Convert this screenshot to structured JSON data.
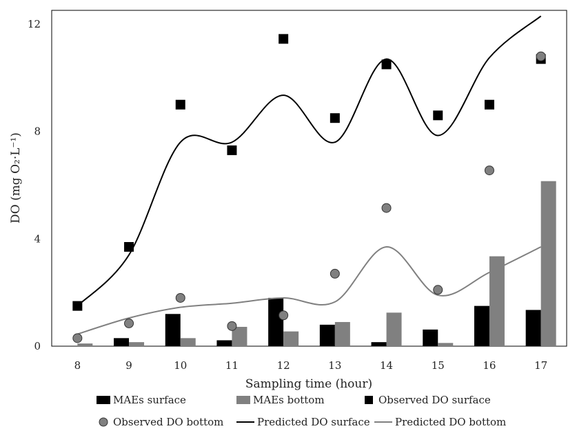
{
  "chart_data": {
    "type": "bar",
    "categories": [
      "8",
      "9",
      "10",
      "11",
      "12",
      "13",
      "14",
      "15",
      "16",
      "17"
    ],
    "xlabel": "Sampling time (hour)",
    "ylabel": "DO (mg O₂·L⁻¹)",
    "ylim": [
      0,
      12
    ],
    "yticks": [
      0,
      4,
      8,
      12
    ],
    "grid": false,
    "legend_position": "bottom",
    "series": [
      {
        "name": "MAEs surface",
        "kind": "bar",
        "color": "#000000",
        "values": [
          0.0,
          0.3,
          1.2,
          0.22,
          1.8,
          0.8,
          0.15,
          0.62,
          1.5,
          1.35
        ]
      },
      {
        "name": "MAEs bottom",
        "kind": "bar",
        "color": "#808080",
        "values": [
          0.1,
          0.15,
          0.3,
          0.72,
          0.55,
          0.9,
          1.25,
          0.12,
          3.35,
          6.15
        ]
      },
      {
        "name": "Observed DO surface",
        "kind": "marker-square",
        "color": "#000000",
        "values": [
          1.5,
          3.7,
          9.0,
          7.3,
          11.45,
          8.5,
          10.5,
          8.6,
          9.0,
          10.7
        ]
      },
      {
        "name": "Observed DO bottom",
        "kind": "marker-circle",
        "color": "#808080",
        "values": [
          0.3,
          0.85,
          1.8,
          0.75,
          1.15,
          2.7,
          5.15,
          2.1,
          6.55,
          10.8
        ]
      },
      {
        "name": "Predicted DO surface",
        "kind": "line",
        "color": "#000000",
        "values": [
          1.5,
          3.4,
          7.6,
          7.6,
          9.35,
          7.6,
          10.7,
          7.85,
          10.75,
          12.3
        ]
      },
      {
        "name": "Predicted DO bottom",
        "kind": "line",
        "color": "#808080",
        "values": [
          0.45,
          1.05,
          1.45,
          1.6,
          1.8,
          1.65,
          3.7,
          1.9,
          2.75,
          3.7
        ]
      }
    ]
  }
}
